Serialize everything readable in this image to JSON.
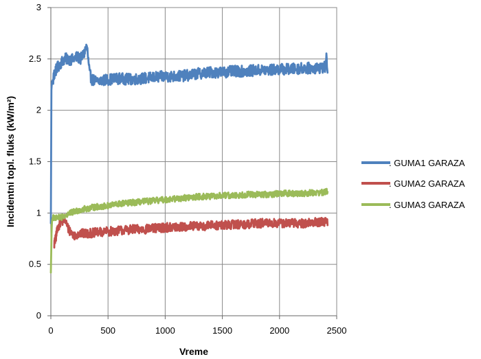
{
  "chart_data": {
    "type": "line",
    "title": "",
    "xlabel": "Vreme",
    "ylabel": "Incidentni topl. fluks (kW/m²)",
    "xlim": [
      0,
      2500
    ],
    "ylim": [
      0,
      3
    ],
    "x_ticks": [
      0,
      500,
      1000,
      1500,
      2000,
      2500
    ],
    "y_ticks": [
      0,
      0.5,
      1,
      1.5,
      2,
      2.5,
      3
    ],
    "y_tick_labels": [
      "0",
      "0.5",
      "1",
      "1.5",
      "2",
      "2.5",
      "3"
    ],
    "grid": "vertical and horizontal major gridlines",
    "legend_position": "right",
    "series": [
      {
        "name": ". GUMA1 GARAZA",
        "color": "#4f81bd",
        "x": [
          0,
          5,
          10,
          20,
          30,
          40,
          60,
          80,
          100,
          120,
          150,
          180,
          200,
          230,
          260,
          290,
          310,
          320,
          330,
          340,
          360,
          400,
          450,
          500,
          600,
          700,
          800,
          900,
          1000,
          1100,
          1200,
          1300,
          1400,
          1500,
          1600,
          1700,
          1800,
          1900,
          2000,
          2100,
          2200,
          2300,
          2400,
          2410,
          2420
        ],
        "y": [
          0.9,
          2.2,
          2.28,
          2.3,
          2.35,
          2.38,
          2.42,
          2.45,
          2.48,
          2.5,
          2.5,
          2.49,
          2.5,
          2.52,
          2.5,
          2.55,
          2.62,
          2.58,
          2.45,
          2.35,
          2.3,
          2.28,
          2.29,
          2.3,
          2.31,
          2.3,
          2.31,
          2.32,
          2.33,
          2.33,
          2.34,
          2.36,
          2.37,
          2.37,
          2.38,
          2.38,
          2.39,
          2.39,
          2.4,
          2.4,
          2.41,
          2.41,
          2.42,
          2.5,
          2.4
        ]
      },
      {
        "name": ". GUMA2 GARAZA",
        "color": "#c0504d",
        "x": [
          30,
          40,
          50,
          60,
          80,
          100,
          120,
          150,
          200,
          250,
          300,
          400,
          500,
          600,
          700,
          800,
          900,
          1000,
          1100,
          1200,
          1300,
          1400,
          1500,
          1600,
          1700,
          1800,
          1900,
          2000,
          2100,
          2200,
          2300,
          2400,
          2410,
          2420
        ],
        "y": [
          0.7,
          0.74,
          0.8,
          0.86,
          0.9,
          0.92,
          0.95,
          0.85,
          0.78,
          0.8,
          0.8,
          0.81,
          0.82,
          0.83,
          0.84,
          0.84,
          0.85,
          0.86,
          0.86,
          0.87,
          0.87,
          0.88,
          0.88,
          0.89,
          0.89,
          0.9,
          0.9,
          0.9,
          0.9,
          0.9,
          0.91,
          0.91,
          0.95,
          0.9
        ]
      },
      {
        "name": ". GUMA3 GARAZA",
        "color": "#9bbb59",
        "x": [
          0,
          3,
          6,
          10,
          15,
          20,
          40,
          60,
          80,
          100,
          150,
          200,
          250,
          300,
          400,
          500,
          600,
          700,
          800,
          900,
          1000,
          1100,
          1200,
          1300,
          1400,
          1500,
          1600,
          1700,
          1800,
          1900,
          2000,
          2100,
          2200,
          2300,
          2400,
          2410,
          2420
        ],
        "y": [
          0.42,
          0.6,
          0.8,
          0.92,
          0.95,
          0.96,
          0.95,
          0.96,
          0.95,
          0.96,
          0.99,
          1.01,
          1.03,
          1.04,
          1.06,
          1.07,
          1.09,
          1.1,
          1.11,
          1.12,
          1.13,
          1.14,
          1.15,
          1.16,
          1.16,
          1.17,
          1.17,
          1.18,
          1.18,
          1.18,
          1.19,
          1.19,
          1.19,
          1.2,
          1.2,
          1.22,
          1.2
        ]
      }
    ]
  }
}
